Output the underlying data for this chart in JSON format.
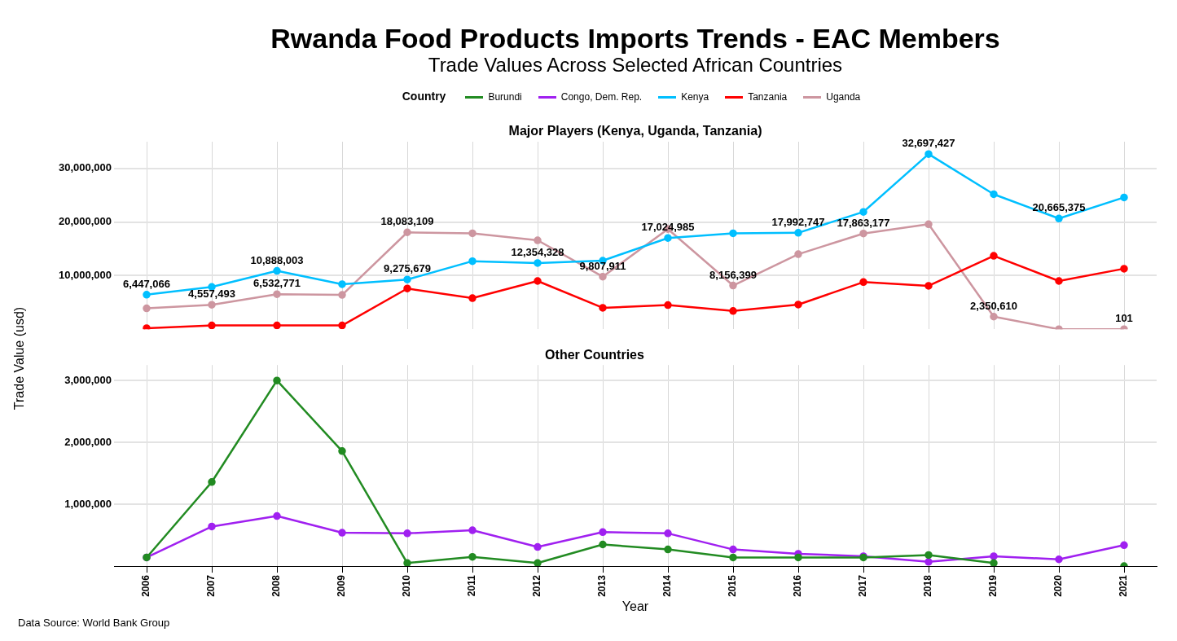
{
  "chart_data": [
    {
      "type": "line",
      "title": "Rwanda Food Products Imports Trends - EAC Members",
      "subtitle": "Trade Values Across Selected African Countries",
      "ylabel": "Trade Value (usd)",
      "legend_title": "Country",
      "legend": "top",
      "grid": true,
      "marker": "circle",
      "line_style": "solid",
      "tick_labels": "y",
      "categories": [
        "2006",
        "2007",
        "2008",
        "2009",
        "2010",
        "2011",
        "2012",
        "2013",
        "2014",
        "2015",
        "2016",
        "2017",
        "2018",
        "2019",
        "2020",
        "2021"
      ],
      "ylim": [
        0,
        35000000
      ],
      "yticks": [
        {
          "value": 10000000,
          "label": "10,000,000"
        },
        {
          "value": 20000000,
          "label": "20,000,000"
        },
        {
          "value": 30000000,
          "label": "30,000,000"
        }
      ],
      "series": [
        {
          "name": "Kenya",
          "color": "#00bfff",
          "values": [
            6447066,
            7900000,
            10888003,
            8400000,
            9275679,
            12700000,
            12354328,
            12800000,
            17024985,
            17900000,
            17992747,
            21900000,
            32697427,
            25200000,
            20665375,
            24600000
          ],
          "value_labels": [
            "6,447,066",
            null,
            "10,888,003",
            null,
            "9,275,679",
            null,
            "12,354,328",
            null,
            "17,024,985",
            null,
            "17,992,747",
            null,
            "32,697,427",
            null,
            "20,665,375",
            null
          ]
        },
        {
          "name": "Tanzania",
          "color": "#ff0000",
          "values": [
            200000,
            700000,
            700000,
            700000,
            7600000,
            5800000,
            9000000,
            4000000,
            4500000,
            3400000,
            4600000,
            8800000,
            8100000,
            13700000,
            9000000,
            11300000
          ]
        },
        {
          "name": "Uganda",
          "color": "#cd96a0",
          "values": [
            3900000,
            4557493,
            6532771,
            6400000,
            18083109,
            17900000,
            16600000,
            9807911,
            18700000,
            8156399,
            14000000,
            17863177,
            19600000,
            2350610,
            0,
            101
          ],
          "value_labels": [
            null,
            "4,557,493",
            "6,532,771",
            null,
            "18,083,109",
            null,
            null,
            "9,807,911",
            null,
            "8,156,399",
            null,
            "17,863,177",
            null,
            "2,350,610",
            null,
            "101"
          ]
        }
      ],
      "annotations": [
        "Major Players (Kenya, Uganda, Tanzania)"
      ]
    },
    {
      "type": "line",
      "title": "Other Countries",
      "xlabel": "Year",
      "legend": "top",
      "grid": true,
      "marker": "circle",
      "line_style": "solid",
      "categories": [
        "2006",
        "2007",
        "2008",
        "2009",
        "2010",
        "2011",
        "2012",
        "2013",
        "2014",
        "2015",
        "2016",
        "2017",
        "2018",
        "2019",
        "2020",
        "2021"
      ],
      "ylim": [
        0,
        3250000
      ],
      "yticks": [
        {
          "value": 1000000,
          "label": "1,000,000"
        },
        {
          "value": 2000000,
          "label": "2,000,000"
        },
        {
          "value": 3000000,
          "label": "3,000,000"
        }
      ],
      "series": [
        {
          "name": "Burundi",
          "color": "#228b22",
          "values": [
            140000,
            1360000,
            3000000,
            1860000,
            50000,
            150000,
            50000,
            350000,
            270000,
            140000,
            140000,
            140000,
            180000,
            50000,
            null,
            0
          ]
        },
        {
          "name": "Congo, Dem. Rep.",
          "color": "#a020f0",
          "values": [
            140000,
            640000,
            810000,
            540000,
            530000,
            580000,
            310000,
            550000,
            530000,
            270000,
            200000,
            160000,
            70000,
            160000,
            110000,
            340000
          ]
        }
      ],
      "annotations": [
        "Data Source: World Bank Group"
      ]
    }
  ]
}
